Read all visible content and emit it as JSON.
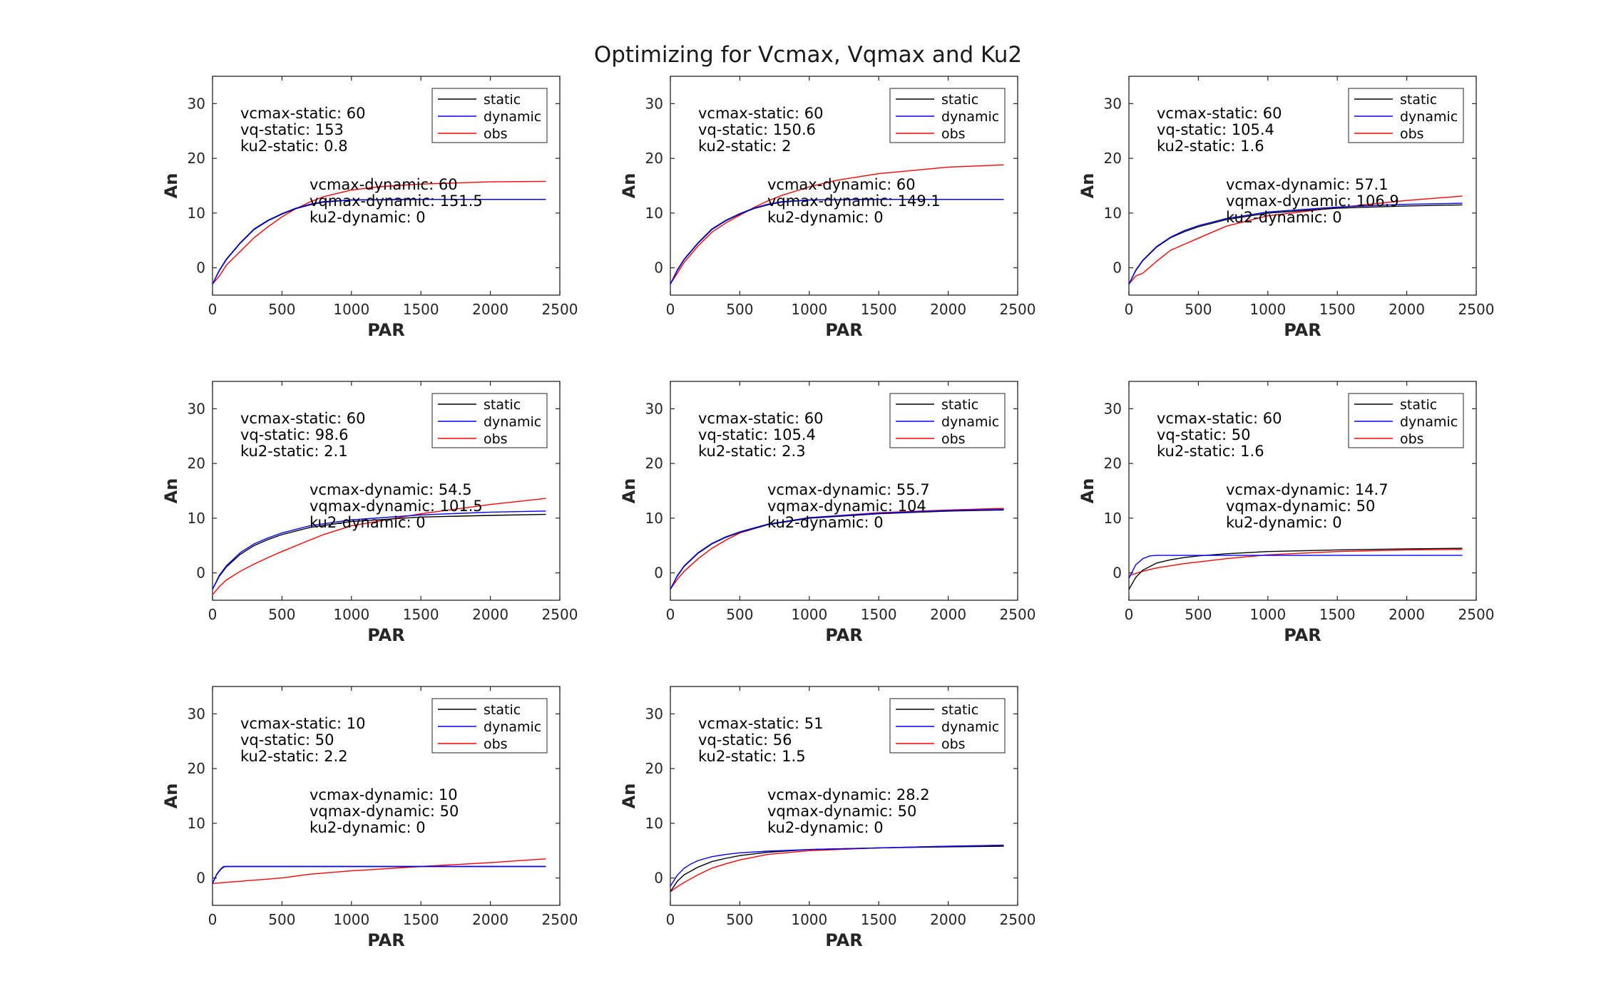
{
  "figure": {
    "title": "Optimizing for Vcmax, Vqmax and Ku2"
  },
  "colors": {
    "static": "#000000",
    "dynamic": "#0000ff",
    "obs": "#ff0000",
    "axes": "#262626"
  },
  "chart_data": [
    {
      "type": "line",
      "xlabel": "PAR",
      "ylabel": "An",
      "xlim": [
        0,
        2500
      ],
      "ylim": [
        -5,
        35
      ],
      "xticks": [
        "0",
        "500",
        "1000",
        "1500",
        "2000",
        "2500"
      ],
      "yticks": [
        "0",
        "10",
        "20",
        "30"
      ],
      "legend": {
        "position": "top-right",
        "entries": [
          "static",
          "dynamic",
          "obs"
        ]
      },
      "annotations": {
        "static_lines": [
          "vcmax-static: 60",
          "vq-static: 153",
          "ku2-static: 0.8"
        ],
        "dynamic_lines": [
          "vcmax-dynamic: 60",
          "vqmax-dynamic: 151.5",
          "ku2-dynamic: 0"
        ]
      },
      "series": [
        {
          "name": "static",
          "x": [
            0,
            50,
            100,
            200,
            300,
            400,
            500,
            600,
            700,
            800,
            1000,
            1500,
            2000,
            2400
          ],
          "y": [
            -3,
            -0.5,
            1.5,
            4.5,
            7,
            8.6,
            9.8,
            10.8,
            11.5,
            12,
            12.4,
            12.5,
            12.5,
            12.5
          ]
        },
        {
          "name": "dynamic",
          "x": [
            0,
            50,
            100,
            200,
            300,
            400,
            500,
            600,
            700,
            800,
            1000,
            1500,
            2000,
            2400
          ],
          "y": [
            -3,
            -0.4,
            1.6,
            4.6,
            7.1,
            8.7,
            9.9,
            10.9,
            11.6,
            12.1,
            12.4,
            12.5,
            12.5,
            12.5
          ]
        },
        {
          "name": "obs",
          "x": [
            0,
            50,
            100,
            200,
            300,
            400,
            500,
            600,
            700,
            800,
            1000,
            1200,
            1500,
            2000,
            2400
          ],
          "y": [
            -3,
            -1.5,
            0.5,
            3,
            5.5,
            7.5,
            9.3,
            10.8,
            12,
            13,
            14.2,
            14.8,
            15.3,
            15.7,
            15.8
          ]
        }
      ]
    },
    {
      "type": "line",
      "xlabel": "PAR",
      "ylabel": "An",
      "xlim": [
        0,
        2500
      ],
      "ylim": [
        -5,
        35
      ],
      "xticks": [
        "0",
        "500",
        "1000",
        "1500",
        "2000",
        "2500"
      ],
      "yticks": [
        "0",
        "10",
        "20",
        "30"
      ],
      "legend": {
        "position": "top-right",
        "entries": [
          "static",
          "dynamic",
          "obs"
        ]
      },
      "annotations": {
        "static_lines": [
          "vcmax-static: 60",
          "vq-static: 150.6",
          "ku2-static: 2"
        ],
        "dynamic_lines": [
          "vcmax-dynamic: 60",
          "vqmax-dynamic: 149.1",
          "ku2-dynamic: 0"
        ]
      },
      "series": [
        {
          "name": "static",
          "x": [
            0,
            50,
            100,
            200,
            300,
            400,
            500,
            600,
            700,
            800,
            1000,
            1500,
            2000,
            2400
          ],
          "y": [
            -3,
            -0.5,
            1.5,
            4.5,
            7,
            8.6,
            9.8,
            10.8,
            11.5,
            12,
            12.4,
            12.5,
            12.5,
            12.5
          ]
        },
        {
          "name": "dynamic",
          "x": [
            0,
            50,
            100,
            200,
            300,
            400,
            500,
            600,
            700,
            800,
            1000,
            1500,
            2000,
            2400
          ],
          "y": [
            -3,
            -0.4,
            1.6,
            4.6,
            7.1,
            8.7,
            9.9,
            10.9,
            11.6,
            12.1,
            12.4,
            12.5,
            12.5,
            12.5
          ]
        },
        {
          "name": "obs",
          "x": [
            0,
            50,
            100,
            200,
            300,
            400,
            500,
            600,
            700,
            800,
            1000,
            1200,
            1500,
            2000,
            2400
          ],
          "y": [
            -3,
            -1,
            1,
            4,
            6.5,
            8.2,
            9.6,
            11,
            12.2,
            13.2,
            14.8,
            16,
            17.2,
            18.4,
            18.8
          ]
        }
      ]
    },
    {
      "type": "line",
      "xlabel": "PAR",
      "ylabel": "An",
      "xlim": [
        0,
        2500
      ],
      "ylim": [
        -5,
        35
      ],
      "xticks": [
        "0",
        "500",
        "1000",
        "1500",
        "2000",
        "2500"
      ],
      "yticks": [
        "0",
        "10",
        "20",
        "30"
      ],
      "legend": {
        "position": "top-right",
        "entries": [
          "static",
          "dynamic",
          "obs"
        ]
      },
      "annotations": {
        "static_lines": [
          "vcmax-static: 60",
          "vq-static: 105.4",
          "ku2-static: 1.6"
        ],
        "dynamic_lines": [
          "vcmax-dynamic: 57.1",
          "vqmax-dynamic: 106.9",
          "ku2-dynamic: 0"
        ]
      },
      "series": [
        {
          "name": "static",
          "x": [
            0,
            50,
            100,
            200,
            300,
            400,
            500,
            700,
            1000,
            1500,
            2000,
            2400
          ],
          "y": [
            -3,
            -0.5,
            1.3,
            3.8,
            5.5,
            6.6,
            7.5,
            8.8,
            10,
            10.9,
            11.3,
            11.5
          ]
        },
        {
          "name": "dynamic",
          "x": [
            0,
            50,
            100,
            200,
            300,
            400,
            500,
            700,
            1000,
            1500,
            2000,
            2400
          ],
          "y": [
            -3,
            -0.4,
            1.4,
            3.9,
            5.6,
            6.8,
            7.7,
            9,
            10.2,
            11.1,
            11.6,
            11.8
          ]
        },
        {
          "name": "obs",
          "x": [
            0,
            50,
            100,
            200,
            300,
            400,
            500,
            700,
            1000,
            1500,
            2000,
            2400
          ],
          "y": [
            -3,
            -1.5,
            -1,
            1.2,
            3.2,
            4.3,
            5.4,
            7.6,
            9.5,
            11,
            12.3,
            13.1
          ]
        }
      ]
    },
    {
      "type": "line",
      "xlabel": "PAR",
      "ylabel": "An",
      "xlim": [
        0,
        2500
      ],
      "ylim": [
        -5,
        35
      ],
      "xticks": [
        "0",
        "500",
        "1000",
        "1500",
        "2000",
        "2500"
      ],
      "yticks": [
        "0",
        "10",
        "20",
        "30"
      ],
      "legend": {
        "position": "top-right",
        "entries": [
          "static",
          "dynamic",
          "obs"
        ]
      },
      "annotations": {
        "static_lines": [
          "vcmax-static: 60",
          "vq-static: 98.6",
          "ku2-static: 2.1"
        ],
        "dynamic_lines": [
          "vcmax-dynamic: 54.5",
          "vqmax-dynamic: 101.5",
          "ku2-dynamic: 0"
        ]
      },
      "series": [
        {
          "name": "static",
          "x": [
            0,
            50,
            100,
            200,
            300,
            400,
            500,
            700,
            1000,
            1500,
            2000,
            2400
          ],
          "y": [
            -3,
            -0.6,
            1.1,
            3.4,
            5,
            6.1,
            7,
            8.3,
            9.4,
            10.2,
            10.5,
            10.7
          ]
        },
        {
          "name": "dynamic",
          "x": [
            0,
            50,
            100,
            200,
            300,
            400,
            500,
            700,
            1000,
            1500,
            2000,
            2400
          ],
          "y": [
            -3,
            -0.4,
            1.3,
            3.7,
            5.3,
            6.4,
            7.3,
            8.6,
            9.7,
            10.6,
            11.1,
            11.3
          ]
        },
        {
          "name": "obs",
          "x": [
            0,
            50,
            100,
            200,
            300,
            400,
            500,
            700,
            800,
            1000,
            1500,
            2000,
            2400
          ],
          "y": [
            -4,
            -2.5,
            -1.3,
            0.3,
            1.6,
            2.8,
            3.9,
            6,
            7,
            8.6,
            10.8,
            12.5,
            13.6
          ]
        }
      ]
    },
    {
      "type": "line",
      "xlabel": "PAR",
      "ylabel": "An",
      "xlim": [
        0,
        2500
      ],
      "ylim": [
        -5,
        35
      ],
      "xticks": [
        "0",
        "500",
        "1000",
        "1500",
        "2000",
        "2500"
      ],
      "yticks": [
        "0",
        "10",
        "20",
        "30"
      ],
      "legend": {
        "position": "top-right",
        "entries": [
          "static",
          "dynamic",
          "obs"
        ]
      },
      "annotations": {
        "static_lines": [
          "vcmax-static: 60",
          "vq-static: 105.4",
          "ku2-static: 2.3"
        ],
        "dynamic_lines": [
          "vcmax-dynamic: 55.7",
          "vqmax-dynamic: 104",
          "ku2-dynamic: 0"
        ]
      },
      "series": [
        {
          "name": "static",
          "x": [
            0,
            50,
            100,
            200,
            300,
            400,
            500,
            700,
            1000,
            1500,
            2000,
            2400
          ],
          "y": [
            -3,
            -0.6,
            1.2,
            3.6,
            5.3,
            6.5,
            7.4,
            8.8,
            10,
            10.8,
            11.3,
            11.5
          ]
        },
        {
          "name": "dynamic",
          "x": [
            0,
            50,
            100,
            200,
            300,
            400,
            500,
            700,
            1000,
            1500,
            2000,
            2400
          ],
          "y": [
            -3,
            -0.5,
            1.3,
            3.7,
            5.4,
            6.6,
            7.5,
            8.9,
            10.1,
            10.9,
            11.4,
            11.6
          ]
        },
        {
          "name": "obs",
          "x": [
            0,
            50,
            100,
            200,
            300,
            400,
            500,
            700,
            1000,
            1500,
            2000,
            2400
          ],
          "y": [
            -3,
            -1.2,
            0.3,
            2.6,
            4.5,
            6,
            7.3,
            8.8,
            10.1,
            11,
            11.5,
            11.8
          ]
        }
      ]
    },
    {
      "type": "line",
      "xlabel": "PAR",
      "ylabel": "An",
      "xlim": [
        0,
        2500
      ],
      "ylim": [
        -5,
        35
      ],
      "xticks": [
        "0",
        "500",
        "1000",
        "1500",
        "2000",
        "2500"
      ],
      "yticks": [
        "0",
        "10",
        "20",
        "30"
      ],
      "legend": {
        "position": "top-right",
        "entries": [
          "static",
          "dynamic",
          "obs"
        ]
      },
      "annotations": {
        "static_lines": [
          "vcmax-static: 60",
          "vq-static: 50",
          "ku2-static: 1.6"
        ],
        "dynamic_lines": [
          "vcmax-dynamic: 14.7",
          "vqmax-dynamic: 50",
          "ku2-dynamic: 0"
        ]
      },
      "series": [
        {
          "name": "static",
          "x": [
            0,
            50,
            100,
            200,
            300,
            400,
            500,
            700,
            1000,
            1500,
            2000,
            2400
          ],
          "y": [
            -3,
            -0.8,
            0.5,
            1.8,
            2.4,
            2.8,
            3.1,
            3.5,
            3.9,
            4.2,
            4.4,
            4.5
          ]
        },
        {
          "name": "dynamic",
          "x": [
            0,
            50,
            100,
            150,
            200,
            500,
            1000,
            1500,
            2000,
            2400
          ],
          "y": [
            -1,
            1.5,
            2.6,
            3.1,
            3.2,
            3.2,
            3.2,
            3.2,
            3.2,
            3.2
          ]
        },
        {
          "name": "obs",
          "x": [
            0,
            50,
            100,
            200,
            300,
            400,
            500,
            700,
            1000,
            1500,
            2000,
            2400
          ],
          "y": [
            -0.5,
            -0.1,
            0.3,
            0.9,
            1.3,
            1.7,
            2,
            2.6,
            3.3,
            3.9,
            4.2,
            4.3
          ]
        }
      ]
    },
    {
      "type": "line",
      "xlabel": "PAR",
      "ylabel": "An",
      "xlim": [
        0,
        2500
      ],
      "ylim": [
        -5,
        35
      ],
      "xticks": [
        "0",
        "500",
        "1000",
        "1500",
        "2000",
        "2500"
      ],
      "yticks": [
        "0",
        "10",
        "20",
        "30"
      ],
      "legend": {
        "position": "top-right",
        "entries": [
          "static",
          "dynamic",
          "obs"
        ]
      },
      "annotations": {
        "static_lines": [
          "vcmax-static: 10",
          "vq-static: 50",
          "ku2-static: 2.2"
        ],
        "dynamic_lines": [
          "vcmax-dynamic: 10",
          "vqmax-dynamic: 50",
          "ku2-dynamic: 0"
        ]
      },
      "series": [
        {
          "name": "static",
          "x": [
            0,
            30,
            60,
            80,
            100,
            500,
            1000,
            1500,
            2000,
            2400
          ],
          "y": [
            -1,
            0.6,
            1.6,
            2,
            2.1,
            2.1,
            2.1,
            2.1,
            2.1,
            2.1
          ]
        },
        {
          "name": "dynamic",
          "x": [
            0,
            30,
            60,
            80,
            100,
            500,
            1000,
            1500,
            2000,
            2400
          ],
          "y": [
            -1,
            0.7,
            1.7,
            2.1,
            2.1,
            2.1,
            2.1,
            2.1,
            2.1,
            2.1
          ]
        },
        {
          "name": "obs",
          "x": [
            0,
            200,
            500,
            700,
            1000,
            1500,
            2000,
            2400
          ],
          "y": [
            -1,
            -0.6,
            0,
            0.7,
            1.3,
            2.1,
            2.8,
            3.5
          ]
        }
      ]
    },
    {
      "type": "line",
      "xlabel": "PAR",
      "ylabel": "An",
      "xlim": [
        0,
        2500
      ],
      "ylim": [
        -5,
        35
      ],
      "xticks": [
        "0",
        "500",
        "1000",
        "1500",
        "2000",
        "2500"
      ],
      "yticks": [
        "0",
        "10",
        "20",
        "30"
      ],
      "legend": {
        "position": "top-right",
        "entries": [
          "static",
          "dynamic",
          "obs"
        ]
      },
      "annotations": {
        "static_lines": [
          "vcmax-static: 51",
          "vq-static: 56",
          "ku2-static: 1.5"
        ],
        "dynamic_lines": [
          "vcmax-dynamic: 28.2",
          "vqmax-dynamic: 50",
          "ku2-dynamic: 0"
        ]
      },
      "series": [
        {
          "name": "static",
          "x": [
            0,
            50,
            100,
            200,
            300,
            400,
            500,
            700,
            1000,
            1500,
            2000,
            2400
          ],
          "y": [
            -2.5,
            -0.6,
            0.6,
            2,
            3,
            3.6,
            4.1,
            4.7,
            5.2,
            5.5,
            5.7,
            5.8
          ]
        },
        {
          "name": "dynamic",
          "x": [
            0,
            50,
            100,
            150,
            200,
            300,
            400,
            500,
            700,
            1000,
            1500,
            2000,
            2400
          ],
          "y": [
            -1.5,
            0.5,
            1.8,
            2.6,
            3.2,
            3.9,
            4.3,
            4.6,
            4.9,
            5.2,
            5.5,
            5.8,
            6
          ]
        },
        {
          "name": "obs",
          "x": [
            0,
            50,
            100,
            200,
            300,
            400,
            500,
            700,
            1000,
            1500,
            2000,
            2400
          ],
          "y": [
            -2.5,
            -1.6,
            -0.8,
            0.6,
            1.8,
            2.6,
            3.3,
            4.3,
            5,
            5.5,
            5.8,
            6
          ]
        }
      ]
    }
  ]
}
